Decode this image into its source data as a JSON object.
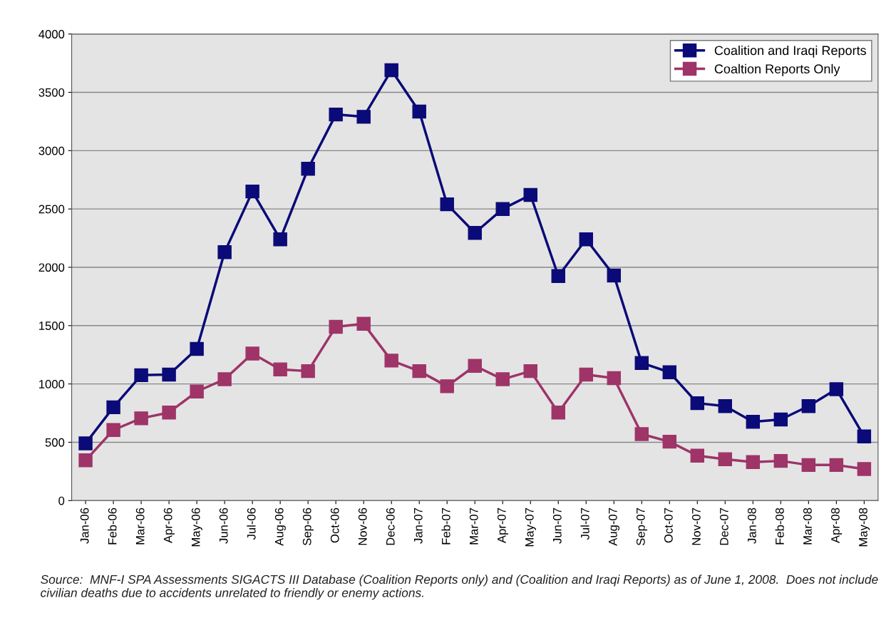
{
  "chart_data": {
    "type": "line",
    "categories": [
      "Jan-06",
      "Feb-06",
      "Mar-06",
      "Apr-06",
      "May-06",
      "Jun-06",
      "Jul-06",
      "Aug-06",
      "Sep-06",
      "Oct-06",
      "Nov-06",
      "Dec-06",
      "Jan-07",
      "Feb-07",
      "Mar-07",
      "Apr-07",
      "May-07",
      "Jun-07",
      "Jul-07",
      "Aug-07",
      "Sep-07",
      "Oct-07",
      "Nov-07",
      "Dec-07",
      "Jan-08",
      "Feb-08",
      "Mar-08",
      "Apr-08",
      "May-08"
    ],
    "series": [
      {
        "name": "Coalition and Iraqi Reports",
        "color": "#0a0a78",
        "values": [
          490,
          800,
          1075,
          1080,
          1300,
          2130,
          2650,
          2240,
          2845,
          3310,
          3290,
          3690,
          3335,
          2540,
          2295,
          2500,
          2620,
          1925,
          2240,
          1930,
          1180,
          1100,
          835,
          810,
          675,
          695,
          810,
          955,
          550
        ]
      },
      {
        "name": "Coaltion Reports Only",
        "color": "#9e3468",
        "values": [
          345,
          605,
          705,
          755,
          935,
          1040,
          1260,
          1125,
          1110,
          1490,
          1515,
          1200,
          1110,
          980,
          1155,
          1040,
          1110,
          755,
          1080,
          1050,
          570,
          505,
          385,
          355,
          330,
          340,
          305,
          305,
          270
        ]
      }
    ],
    "ylim": [
      0,
      4000
    ],
    "yticks": [
      0,
      500,
      1000,
      1500,
      2000,
      2500,
      3000,
      3500,
      4000
    ],
    "grid": "y",
    "legend": "top right",
    "marker": "square",
    "line_style": "solid",
    "annotations": [
      "Source:  MNF-I SPA Assessments SIGACTS III Database (Coalition Reports only) and (Coalition and Iraqi Reports) as of June 1, 2008.  Does not include civilian deaths due to accidents unrelated to friendly or enemy actions."
    ]
  }
}
